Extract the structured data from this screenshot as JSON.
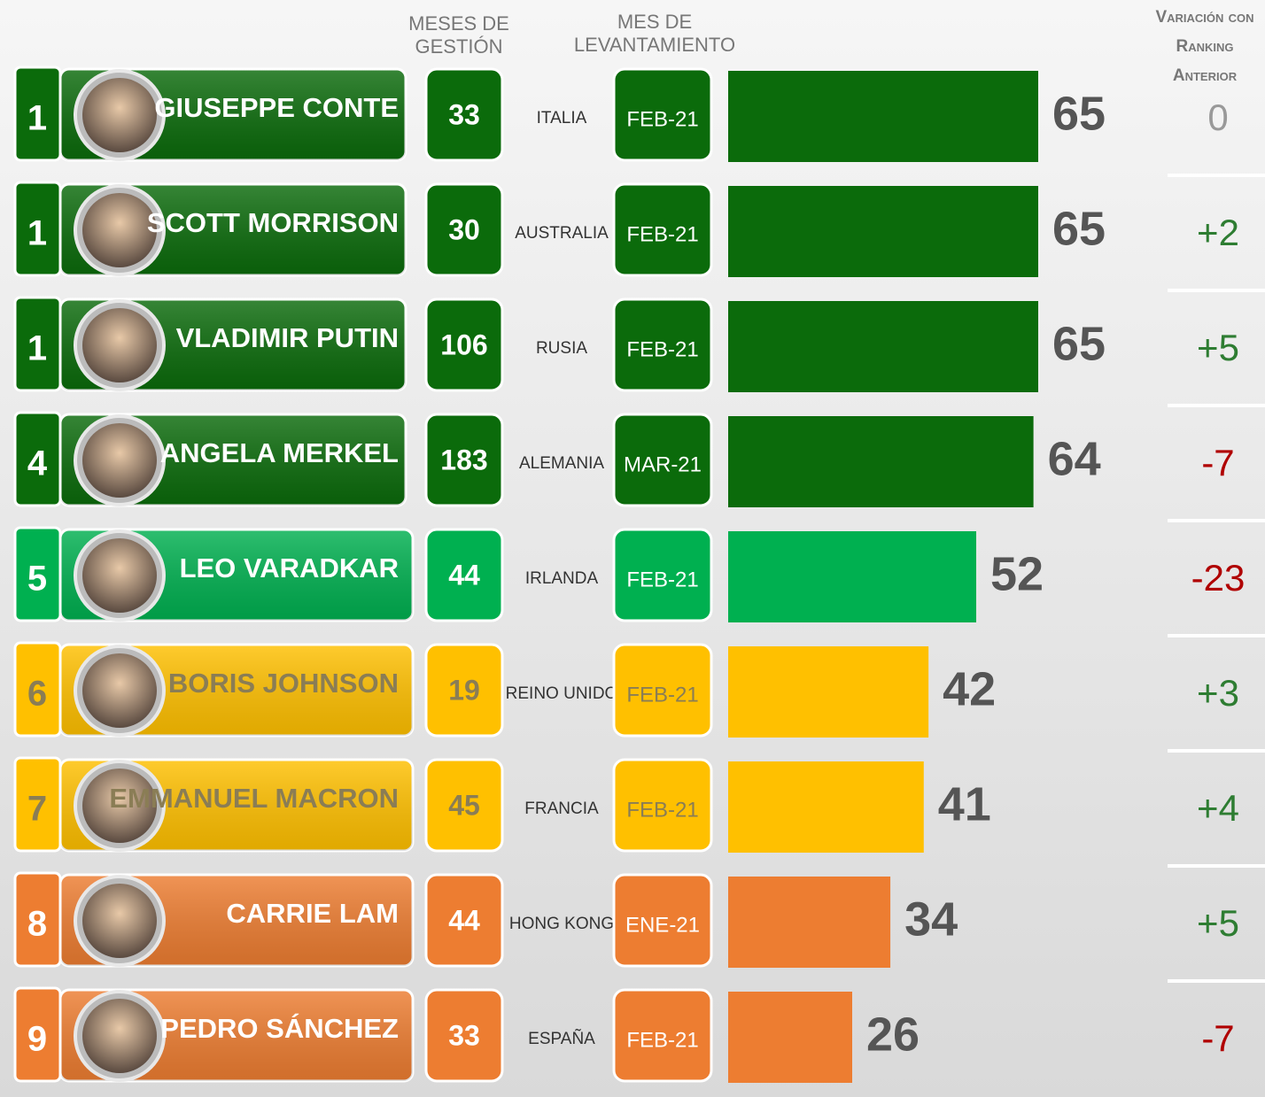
{
  "chart_data": {
    "type": "bar",
    "headers": {
      "months": [
        "MESES DE",
        "GESTIÓN"
      ],
      "date": [
        "MES DE",
        "LEVANTAMIENTO"
      ],
      "change": [
        "Variación con",
        "Ranking",
        "Anterior"
      ]
    },
    "ranks": [
      "1",
      "1",
      "1",
      "4",
      "5",
      "6",
      "7",
      "8",
      "9"
    ],
    "categories": [
      "GIUSEPPE CONTE",
      "SCOTT MORRISON",
      "VLADIMIR PUTIN",
      "ANGELA MERKEL",
      "LEO VARADKAR",
      "BORIS JOHNSON",
      "EMMANUEL MACRON",
      "CARRIE LAM",
      "PEDRO SÁNCHEZ"
    ],
    "months": [
      33,
      30,
      106,
      183,
      44,
      19,
      45,
      44,
      33
    ],
    "countries": [
      "ITALIA",
      "AUSTRALIA",
      "RUSIA",
      "ALEMANIA",
      "IRLANDA",
      "REINO UNIDO",
      "FRANCIA",
      "HONG KONG",
      "ESPAÑA"
    ],
    "dates": [
      "FEB-21",
      "FEB-21",
      "FEB-21",
      "MAR-21",
      "FEB-21",
      "FEB-21",
      "FEB-21",
      "ENE-21",
      "FEB-21"
    ],
    "values": [
      65,
      65,
      65,
      64,
      52,
      42,
      41,
      34,
      26
    ],
    "changes": [
      "0",
      "+2",
      "+5",
      "-7",
      "-23",
      "+3",
      "+4",
      "+5",
      "-7"
    ],
    "colors": [
      "#0b6b0b",
      "#0b6b0b",
      "#0b6b0b",
      "#0b6b0b",
      "#00b050",
      "#ffc000",
      "#ffc000",
      "#ed7d31",
      "#ed7d31"
    ],
    "text_colors": [
      "#ffffff",
      "#ffffff",
      "#ffffff",
      "#ffffff",
      "#ffffff",
      "#8a7d55",
      "#8a7d55",
      "#ffffff",
      "#ffffff"
    ]
  }
}
